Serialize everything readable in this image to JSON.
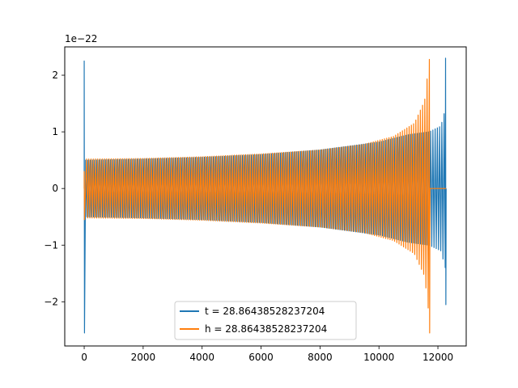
{
  "chart_data": {
    "type": "line",
    "title": "",
    "xlabel": "",
    "ylabel": "",
    "offset_text": "1e−22",
    "xlim": [
      -660,
      12960
    ],
    "ylim": [
      -2.78,
      2.5
    ],
    "x_ticks": [
      0,
      2000,
      4000,
      6000,
      8000,
      10000,
      12000
    ],
    "x_tick_labels": [
      "0",
      "2000",
      "4000",
      "6000",
      "8000",
      "10000",
      "12000"
    ],
    "y_ticks": [
      -2,
      -1,
      0,
      1,
      2
    ],
    "y_tick_labels": [
      "−2",
      "−1",
      "0",
      "1",
      "2"
    ],
    "grid": false,
    "legend_position": "lower-center",
    "series": [
      {
        "name": "t = 28.86438528237204",
        "color": "#1f77b4",
        "x_range": [
          0,
          12280
        ],
        "start_spike": [
          -2.55,
          2.25
        ],
        "envelope": [
          {
            "x": 50,
            "amp": 0.5
          },
          {
            "x": 2000,
            "amp": 0.52
          },
          {
            "x": 4000,
            "amp": 0.55
          },
          {
            "x": 6000,
            "amp": 0.6
          },
          {
            "x": 8000,
            "amp": 0.68
          },
          {
            "x": 10000,
            "amp": 0.82
          },
          {
            "x": 11000,
            "amp": 0.95
          },
          {
            "x": 11700,
            "amp": 1.0
          },
          {
            "x": 12100,
            "amp": 1.1
          },
          {
            "x": 12250,
            "amp": 1.4
          }
        ],
        "end_spike": [
          -2.05,
          2.3
        ]
      },
      {
        "name": "h = 28.86438528237204",
        "color": "#ff7f0e",
        "x_range": [
          0,
          12280
        ],
        "start_spike": [
          -0.55,
          0.3
        ],
        "envelope": [
          {
            "x": 80,
            "amp": 0.52
          },
          {
            "x": 2000,
            "amp": 0.53
          },
          {
            "x": 4000,
            "amp": 0.56
          },
          {
            "x": 6000,
            "amp": 0.61
          },
          {
            "x": 8000,
            "amp": 0.68
          },
          {
            "x": 9500,
            "amp": 0.78
          },
          {
            "x": 10500,
            "amp": 0.92
          },
          {
            "x": 11200,
            "amp": 1.15
          },
          {
            "x": 11550,
            "amp": 1.55
          },
          {
            "x": 11700,
            "amp": 2.25
          }
        ],
        "end_spike": [
          -2.55,
          2.28
        ],
        "flat_after": 11720
      }
    ]
  }
}
